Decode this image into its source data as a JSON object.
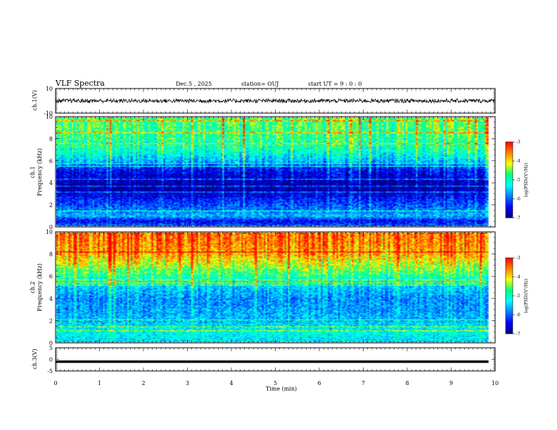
{
  "header": {
    "title": "VLF Spectra",
    "date": "Dec.5 , 2025",
    "station": "station= OUJ",
    "start_ut": "start UT = 9 : 0 : 0"
  },
  "colors": {
    "cmap": [
      "#00007a",
      "#0000ff",
      "#0080ff",
      "#00ffff",
      "#00ff80",
      "#ffff00",
      "#ff8000",
      "#ff0000"
    ],
    "trace": "#000000"
  },
  "chart_data": [
    {
      "type": "line",
      "title": "ch.1 waveform",
      "ylabel": "ch.1(V)",
      "ylim": [
        -10,
        10
      ],
      "yticks": [
        "10",
        "-10"
      ],
      "xlim": [
        0,
        10
      ],
      "baseline": 0
    },
    {
      "type": "heatmap",
      "title": "ch.1 spectrogram",
      "ylabel_top": "ch.1",
      "ylabel": "Frequency (kHz)",
      "ylim": [
        0,
        10
      ],
      "yticks": [
        "0",
        "2",
        "4",
        "6",
        "8",
        "10"
      ],
      "xlim": [
        0,
        9.85
      ],
      "colorbar": {
        "label": "log(PSD)(V²/Hz)",
        "range": [
          -7,
          -3
        ],
        "ticks": [
          "-3",
          "-4",
          "-5",
          "-6",
          "-7"
        ]
      },
      "profile": [
        {
          "f": 0,
          "v": -5.8
        },
        {
          "f": 0.5,
          "v": -6.5
        },
        {
          "f": 1,
          "v": -5.6
        },
        {
          "f": 1.5,
          "v": -5.9
        },
        {
          "f": 2,
          "v": -6.1
        },
        {
          "f": 2.5,
          "v": -6.3
        },
        {
          "f": 3,
          "v": -6.6
        },
        {
          "f": 3.5,
          "v": -6.9
        },
        {
          "f": 4,
          "v": -6.8
        },
        {
          "f": 4.5,
          "v": -6.6
        },
        {
          "f": 5,
          "v": -6.5
        },
        {
          "f": 5.5,
          "v": -6.2
        },
        {
          "f": 6,
          "v": -5.6
        },
        {
          "f": 7,
          "v": -5.0
        },
        {
          "f": 8,
          "v": -4.8
        },
        {
          "f": 9,
          "v": -4.7
        },
        {
          "f": 10,
          "v": -4.6
        }
      ]
    },
    {
      "type": "heatmap",
      "title": "ch.2 spectrogram",
      "ylabel_top": "ch.2",
      "ylabel": "Frequency (kHz)",
      "ylim": [
        0,
        10
      ],
      "yticks": [
        "0",
        "2",
        "4",
        "6",
        "8",
        "10"
      ],
      "xlim": [
        0,
        9.85
      ],
      "colorbar": {
        "label": "log(PSD)(V²/Hz)",
        "range": [
          -7,
          -3
        ],
        "ticks": [
          "-3",
          "-4",
          "-5",
          "-6",
          "-7"
        ]
      },
      "profile": [
        {
          "f": 0,
          "v": -5.4
        },
        {
          "f": 1,
          "v": -5.2
        },
        {
          "f": 2,
          "v": -5.6
        },
        {
          "f": 3,
          "v": -5.7
        },
        {
          "f": 4,
          "v": -5.8
        },
        {
          "f": 5,
          "v": -5.5
        },
        {
          "f": 6,
          "v": -4.9
        },
        {
          "f": 7,
          "v": -4.3
        },
        {
          "f": 8,
          "v": -3.8
        },
        {
          "f": 9,
          "v": -3.6
        },
        {
          "f": 10,
          "v": -3.5
        }
      ]
    },
    {
      "type": "line",
      "title": "ch.3 waveform",
      "ylabel": "ch.3(V)",
      "ylim": [
        -5,
        5
      ],
      "yticks": [
        "5",
        "0",
        "-5"
      ],
      "xlim": [
        0,
        9.85
      ],
      "baseline": -1
    }
  ],
  "xaxis": {
    "label": "Time (min)",
    "range": [
      0,
      10
    ],
    "ticks": [
      "0",
      "1",
      "2",
      "3",
      "4",
      "5",
      "6",
      "7",
      "8",
      "9",
      "10"
    ]
  }
}
